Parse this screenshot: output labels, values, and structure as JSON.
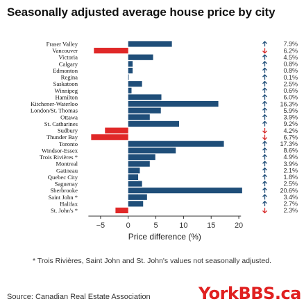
{
  "title": "Seasonally adjusted average house price by city",
  "footnote": "* Trois Rivières, Saint John and St. John's values not seasonally adjusted.",
  "source": "Source: Canadian Real Estate Association",
  "logo": "YorkBBS.ca",
  "colors": {
    "positive": "#1f4e79",
    "negative": "#e02828",
    "up_arrow": "#1f4e79",
    "down_arrow": "#d62828",
    "logo": "#e02020"
  },
  "chart_data": {
    "type": "bar",
    "orientation": "horizontal",
    "xlabel": "Price difference (%)",
    "ylabel": "",
    "xlim": [
      -8.5,
      22
    ],
    "xticks": [
      -5,
      0,
      5,
      10,
      15,
      20
    ],
    "grid": false,
    "categories": [
      "Fraser Valley",
      "Vancouver",
      "Victoria",
      "Calgary",
      "Edmonton",
      "Regina",
      "Saskatoon",
      "Winnipeg",
      "Hamilton",
      "Kitchener-Waterloo",
      "London/St. Thomas",
      "Ottawa",
      "St. Catharines",
      "Sudbury",
      "Thunder Bay",
      "Toronto",
      "Windsor-Essex",
      "Trois Rivières *",
      "Montreal",
      "Gatineau",
      "Quebec City",
      "Saguenay",
      "Sherbrooke",
      "Saint John *",
      "Halifax",
      "St. John's *"
    ],
    "values": [
      7.9,
      -6.2,
      4.5,
      0.8,
      0.8,
      0.1,
      2.5,
      0.6,
      6.0,
      16.3,
      5.9,
      3.9,
      9.2,
      -4.2,
      -6.7,
      17.3,
      8.6,
      4.9,
      3.9,
      2.1,
      1.8,
      2.5,
      20.6,
      3.4,
      2.7,
      -2.3
    ],
    "labels": [
      "7.9%",
      "6.2%",
      "4.5%",
      "0.8%",
      "0.8%",
      "0.1%",
      "2.5%",
      "0.6%",
      "6.0%",
      "16.3%",
      "5.9%",
      "3.9%",
      "9.2%",
      "4.2%",
      "6.7%",
      "17.3%",
      "8.6%",
      "4.9%",
      "3.9%",
      "2.1%",
      "1.8%",
      "2.5%",
      "20.6%",
      "3.4%",
      "2.7%",
      "2.3%"
    ]
  }
}
